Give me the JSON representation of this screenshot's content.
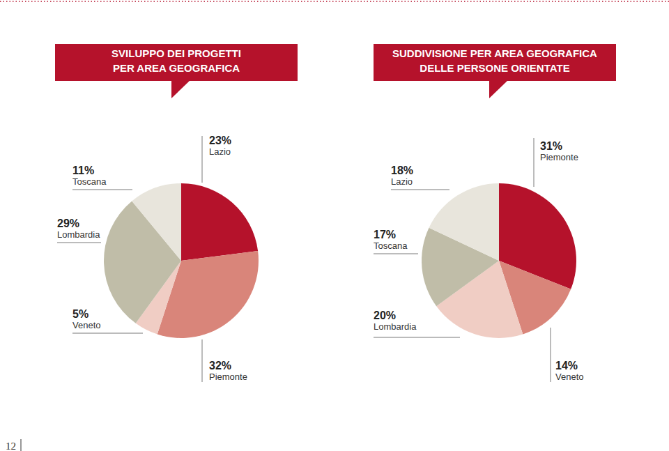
{
  "chart_data": [
    {
      "type": "pie",
      "title": "SVILUPPO DEI PROGETTI\nPER AREA GEOGRAFICA",
      "categories": [
        "Lazio",
        "Piemonte",
        "Veneto",
        "Lombardia",
        "Toscana"
      ],
      "values": [
        23,
        32,
        5,
        29,
        11
      ],
      "value_labels": [
        "23%",
        "32%",
        "5%",
        "29%",
        "11%"
      ],
      "colors": [
        "#b5122b",
        "#d9857a",
        "#f0cdc4",
        "#c0bda8",
        "#e8e5dc"
      ],
      "data_labels": true
    },
    {
      "type": "pie",
      "title": "SUDDIVISIONE PER AREA GEOGRAFICA\nDELLE PERSONE ORIENTATE",
      "categories": [
        "Piemonte",
        "Veneto",
        "Lombardia",
        "Toscana",
        "Lazio"
      ],
      "values": [
        31,
        14,
        20,
        17,
        18
      ],
      "value_labels": [
        "31%",
        "14%",
        "20%",
        "17%",
        "18%"
      ],
      "colors": [
        "#b5122b",
        "#d9857a",
        "#f0cdc4",
        "#c0bda8",
        "#e8e5dc"
      ],
      "data_labels": true
    }
  ],
  "page": {
    "number": "12"
  }
}
